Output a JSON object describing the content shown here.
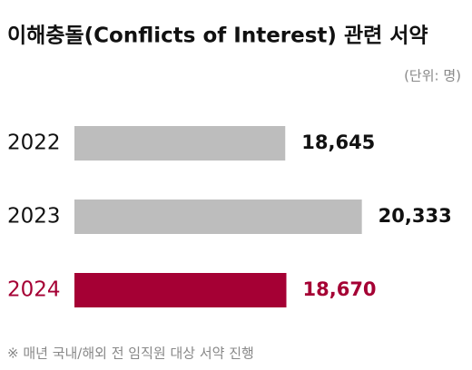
{
  "chart_data": {
    "type": "hbar",
    "title": "이해충돌(Conflicts of Interest) 관련 서약",
    "unit": "(단위: 명)",
    "footnote": "※ 매년 국내/해외 전 임직원 대상 서약 진행",
    "categories": [
      "2022",
      "2023",
      "2024"
    ],
    "values": [
      18645,
      20333,
      18670
    ],
    "value_labels": [
      "18,645",
      "20,333",
      "18,670"
    ],
    "colors": [
      "#bdbdbd",
      "#bdbdbd",
      "#a50034"
    ],
    "label_colors": [
      "#111111",
      "#111111",
      "#a50034"
    ],
    "xlim": [
      14000,
      20800
    ]
  }
}
